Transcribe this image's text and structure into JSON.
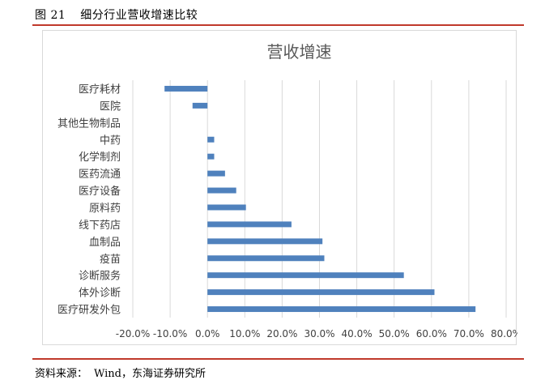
{
  "figure": {
    "number": "图 21",
    "caption": "细分行业营收增速比较"
  },
  "source": {
    "label": "资料来源：",
    "text": "Wind，东海证券研究所"
  },
  "colors": {
    "bar": "#4f81bd",
    "rule": "#c0392b",
    "grid": "#d9d9d9"
  },
  "chart_data": {
    "type": "bar",
    "orientation": "horizontal",
    "title": "营收增速",
    "categories": [
      "医疗耗材",
      "医院",
      "其他生物制品",
      "中药",
      "化学制剂",
      "医药流通",
      "医疗设备",
      "原料药",
      "线下药店",
      "血制品",
      "疫苗",
      "诊断服务",
      "体外诊断",
      "医疗研发外包"
    ],
    "values": [
      -0.115,
      -0.04,
      0.0,
      0.018,
      0.018,
      0.047,
      0.077,
      0.103,
      0.225,
      0.308,
      0.313,
      0.526,
      0.608,
      0.718
    ],
    "xlim": [
      -0.2,
      0.8
    ],
    "xticks": [
      -0.2,
      -0.1,
      0.0,
      0.1,
      0.2,
      0.3,
      0.4,
      0.5,
      0.6,
      0.7,
      0.8
    ],
    "xtick_labels": [
      "-20.0%",
      "-10.0%",
      "0.0%",
      "10.0%",
      "20.0%",
      "30.0%",
      "40.0%",
      "50.0%",
      "60.0%",
      "70.0%",
      "80.0%"
    ],
    "grid": true,
    "legend": "none"
  }
}
